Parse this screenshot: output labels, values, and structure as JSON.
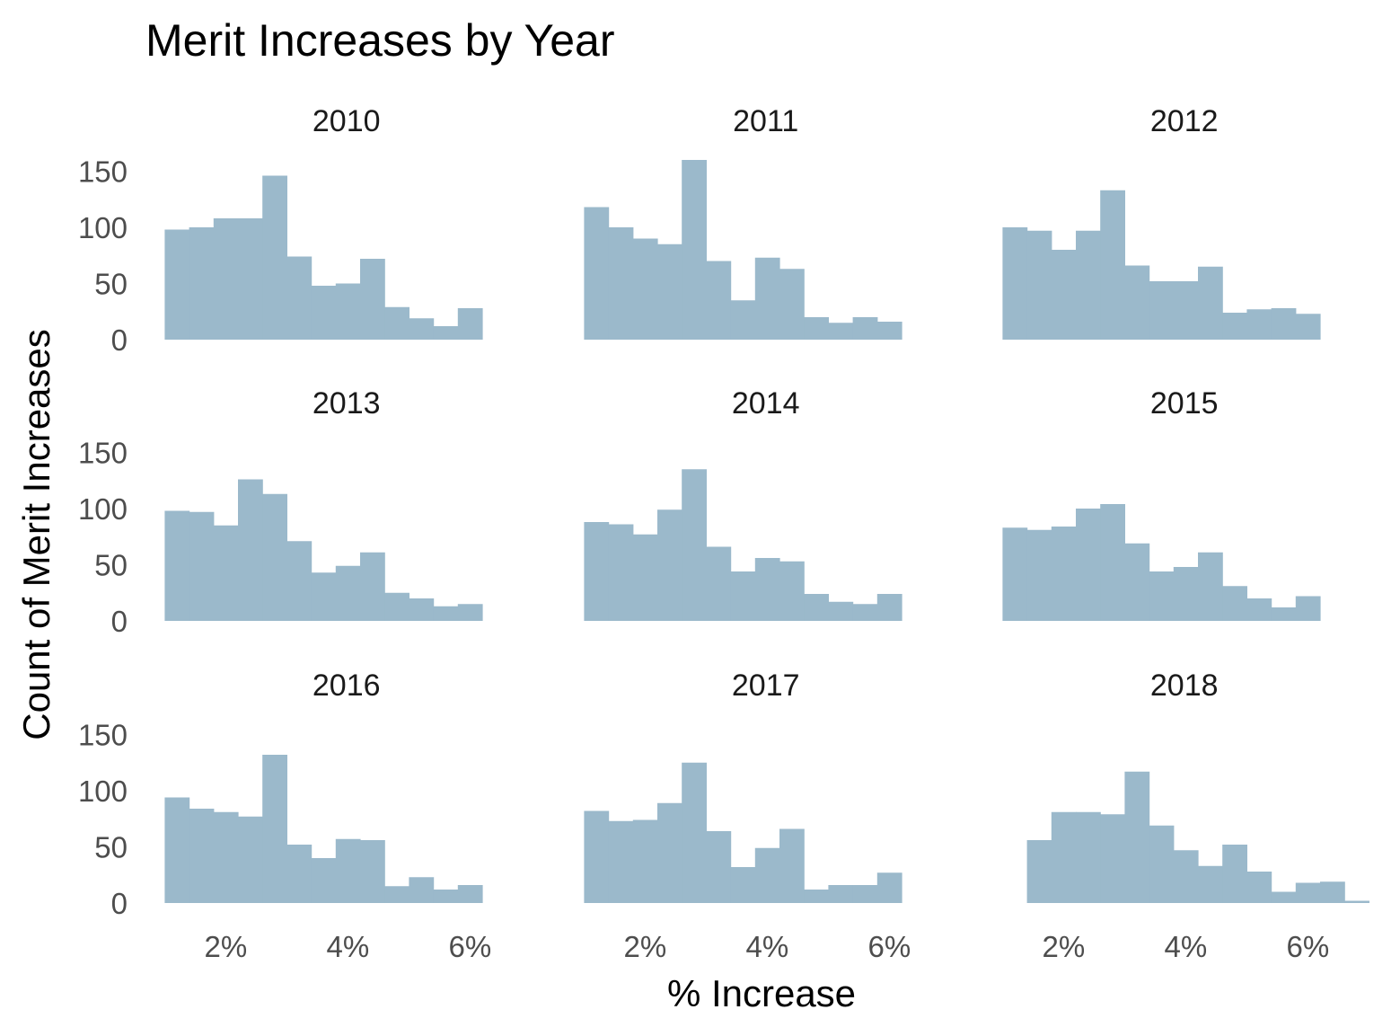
{
  "chart_data": {
    "type": "bar",
    "title": "Merit Increases by Year",
    "xlabel": "% Increase",
    "ylabel": "Count of Merit Increases",
    "bar_color": "#9bb9cb",
    "grid": false,
    "bin_width": 0.4,
    "xlim": [
      0.95,
      7.0
    ],
    "ylim": [
      0,
      160
    ],
    "x_ticks": [
      {
        "value": 2,
        "label": "2%"
      },
      {
        "value": 4,
        "label": "4%"
      },
      {
        "value": 6,
        "label": "6%"
      }
    ],
    "y_ticks": [
      {
        "value": 0,
        "label": "0"
      },
      {
        "value": 50,
        "label": "50"
      },
      {
        "value": 100,
        "label": "100"
      },
      {
        "value": 150,
        "label": "150"
      }
    ],
    "panels": [
      {
        "year": "2010",
        "bin_start": 1.0,
        "counts": [
          98,
          100,
          108,
          108,
          146,
          74,
          48,
          50,
          72,
          29,
          19,
          12,
          28
        ]
      },
      {
        "year": "2011",
        "bin_start": 1.0,
        "counts": [
          118,
          100,
          90,
          85,
          160,
          70,
          35,
          73,
          63,
          20,
          15,
          20,
          16
        ]
      },
      {
        "year": "2012",
        "bin_start": 1.0,
        "counts": [
          100,
          97,
          80,
          97,
          133,
          66,
          52,
          52,
          65,
          24,
          27,
          28,
          23
        ]
      },
      {
        "year": "2013",
        "bin_start": 1.0,
        "counts": [
          98,
          97,
          85,
          126,
          113,
          71,
          43,
          49,
          61,
          25,
          20,
          13,
          15
        ]
      },
      {
        "year": "2014",
        "bin_start": 1.0,
        "counts": [
          88,
          86,
          77,
          99,
          135,
          66,
          44,
          56,
          53,
          24,
          17,
          15,
          24
        ]
      },
      {
        "year": "2015",
        "bin_start": 1.0,
        "counts": [
          83,
          81,
          84,
          100,
          104,
          69,
          44,
          48,
          61,
          31,
          20,
          12,
          22
        ]
      },
      {
        "year": "2016",
        "bin_start": 1.0,
        "counts": [
          94,
          84,
          81,
          77,
          132,
          52,
          40,
          57,
          56,
          15,
          23,
          12,
          16
        ]
      },
      {
        "year": "2017",
        "bin_start": 1.0,
        "counts": [
          82,
          73,
          74,
          89,
          125,
          64,
          32,
          49,
          66,
          12,
          16,
          16,
          27
        ]
      },
      {
        "year": "2018",
        "bin_start": 1.4,
        "counts": [
          56,
          81,
          81,
          79,
          117,
          69,
          47,
          33,
          52,
          28,
          10,
          18,
          19,
          2
        ]
      }
    ]
  }
}
